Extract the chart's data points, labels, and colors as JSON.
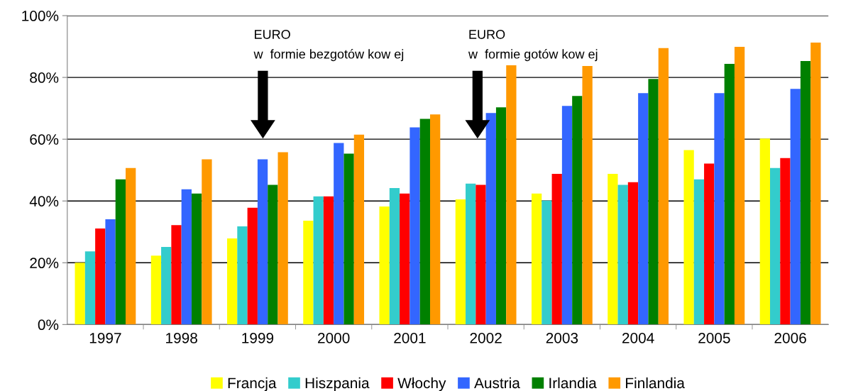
{
  "chart_data": {
    "type": "bar",
    "categories": [
      "1997",
      "1998",
      "1999",
      "2000",
      "2001",
      "2002",
      "2003",
      "2004",
      "2005",
      "2006"
    ],
    "series": [
      {
        "name": "Francja",
        "color": "#ffff00",
        "values": [
          20.0,
          22.3,
          27.9,
          33.6,
          38.2,
          40.5,
          42.4,
          48.8,
          56.5,
          60.2
        ]
      },
      {
        "name": "Hiszpania",
        "color": "#33cccc",
        "values": [
          23.7,
          25.1,
          31.8,
          41.5,
          44.2,
          45.6,
          40.1,
          45.2,
          47.0,
          50.7
        ]
      },
      {
        "name": "Włochy",
        "color": "#ff0000",
        "values": [
          31.1,
          32.2,
          37.8,
          41.5,
          42.4,
          45.2,
          48.8,
          46.1,
          52.1,
          53.9
        ]
      },
      {
        "name": "Austria",
        "color": "#3366ff",
        "values": [
          34.1,
          43.8,
          53.5,
          58.8,
          63.8,
          68.5,
          70.8,
          74.9,
          74.9,
          76.3
        ]
      },
      {
        "name": "Irlandia",
        "color": "#008000",
        "values": [
          47.0,
          42.4,
          45.2,
          55.3,
          66.6,
          70.3,
          74.0,
          79.5,
          84.4,
          85.3
        ]
      },
      {
        "name": "Finlandia",
        "color": "#ff9900",
        "values": [
          50.7,
          53.5,
          55.8,
          61.5,
          68.0,
          83.9,
          83.7,
          89.5,
          89.9,
          91.3
        ]
      }
    ],
    "ylim": [
      0,
      100
    ],
    "yticks": [
      {
        "value": 0,
        "label": "0%"
      },
      {
        "value": 20,
        "label": "20%"
      },
      {
        "value": 40,
        "label": "40%"
      },
      {
        "value": 60,
        "label": "60%"
      },
      {
        "value": 80,
        "label": "80%"
      },
      {
        "value": 100,
        "label": "100%"
      }
    ],
    "grid": "y",
    "legend": "bottom",
    "annotations": [
      "EURO\nw  formie bezgotów kow ej",
      "EURO\nw  formie gotów kow ej"
    ]
  }
}
